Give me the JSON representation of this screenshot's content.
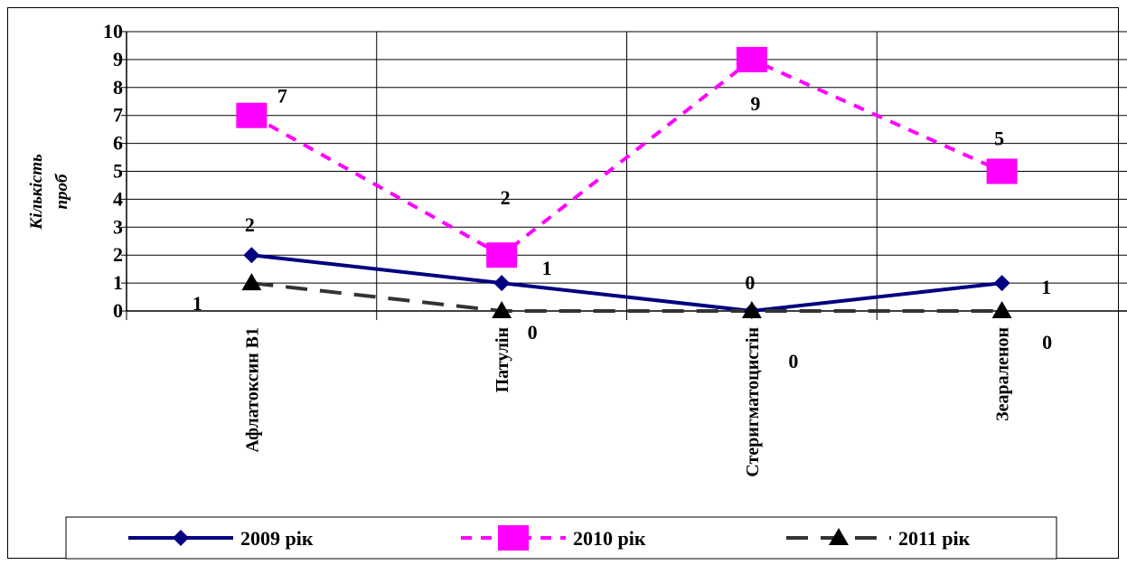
{
  "chart_data": {
    "type": "line",
    "title": "",
    "xlabel": "",
    "ylabel": "Кількість проб",
    "ylim": [
      0,
      10
    ],
    "yticks": [
      0,
      1,
      2,
      3,
      4,
      5,
      6,
      7,
      8,
      9,
      10
    ],
    "grid": true,
    "legend_position": "bottom",
    "categories": [
      "Афлатоксин В1",
      "Патулін",
      "Стеригматоцистін",
      "Зеараленон"
    ],
    "series": [
      {
        "name": "2009 рік",
        "values": [
          2,
          1,
          0,
          1
        ],
        "color": "#000080",
        "marker": "diamond",
        "dash": "solid",
        "labels": [
          "2",
          "1",
          "0",
          "1"
        ]
      },
      {
        "name": "2010 рік",
        "values": [
          7,
          2,
          9,
          5
        ],
        "color": "#ff00ff",
        "marker": "square",
        "dash": "dashed",
        "labels": [
          "7",
          "2",
          "9",
          "5"
        ]
      },
      {
        "name": "2011 рік",
        "values": [
          1,
          0,
          0,
          0
        ],
        "color": "#333333",
        "marker": "triangle",
        "dash": "longdash",
        "labels": [
          "1",
          "0",
          "0",
          "0"
        ]
      }
    ]
  }
}
